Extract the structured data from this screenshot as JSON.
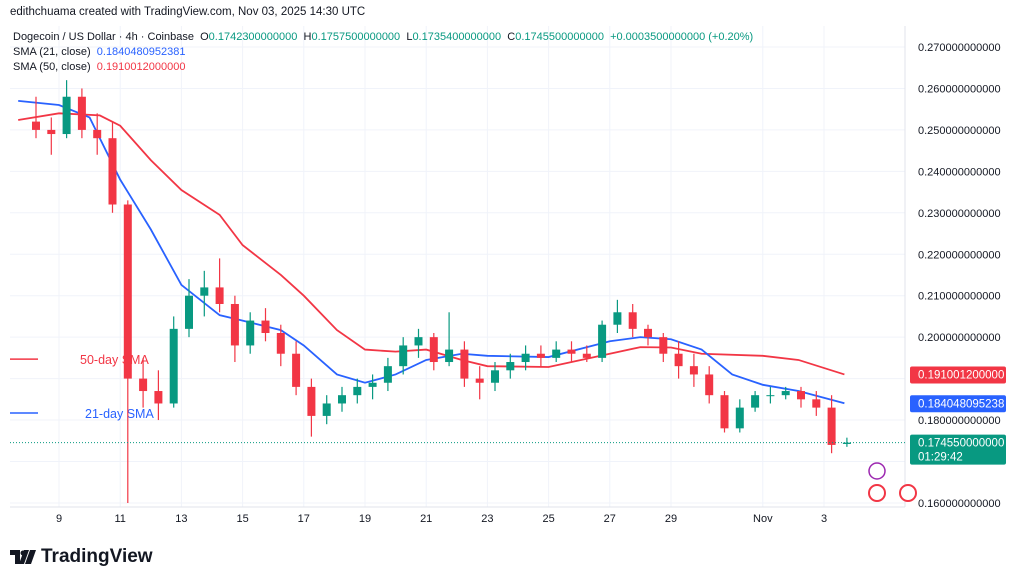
{
  "credit": "edithchuama created with TradingView.com, Nov 03, 2025 14:30 UTC",
  "legend": {
    "symbol": "Dogecoin / US Dollar · 4h · Coinbase",
    "o_label": "O",
    "o": "0.1742300000000",
    "h_label": "H",
    "h": "0.1757500000000",
    "l_label": "L",
    "l": "0.1735400000000",
    "c_label": "C",
    "c": "0.1745500000000",
    "change": "+0.0003500000000 (+0.20%)",
    "sma21_label": "SMA (21, close)",
    "sma21": "0.1840480952381",
    "sma50_label": "SMA (50, close)",
    "sma50": "0.1910012000000"
  },
  "logo_text": "TradingView",
  "colors": {
    "up": "#089981",
    "down": "#f23645",
    "sma21": "#2962ff",
    "sma50": "#f23645",
    "price_box": "#089981"
  },
  "chart_data": {
    "type": "candlestick",
    "ylim": [
      0.16,
      0.27
    ],
    "y_ticks": [
      "0.270000000000",
      "0.260000000000",
      "0.250000000000",
      "0.240000000000",
      "0.230000000000",
      "0.220000000000",
      "0.210000000000",
      "0.200000000000",
      "0.180000000000",
      "0.160000000000"
    ],
    "x_ticks": [
      {
        "d": "2025-10-09",
        "label": "9"
      },
      {
        "d": "2025-10-11",
        "label": "11"
      },
      {
        "d": "2025-10-13",
        "label": "13"
      },
      {
        "d": "2025-10-15",
        "label": "15"
      },
      {
        "d": "2025-10-17",
        "label": "17"
      },
      {
        "d": "2025-10-19",
        "label": "19"
      },
      {
        "d": "2025-10-21",
        "label": "21"
      },
      {
        "d": "2025-10-23",
        "label": "23"
      },
      {
        "d": "2025-10-25",
        "label": "25"
      },
      {
        "d": "2025-10-27",
        "label": "27"
      },
      {
        "d": "2025-10-29",
        "label": "29"
      },
      {
        "d": "2025-11-01",
        "label": "Nov"
      },
      {
        "d": "2025-11-03",
        "label": "3"
      }
    ],
    "candles": [
      [
        "2025-10-08T00",
        0.252,
        0.258,
        0.248,
        0.25
      ],
      [
        "2025-10-08T12",
        0.25,
        0.253,
        0.244,
        0.249
      ],
      [
        "2025-10-09T00",
        0.249,
        0.262,
        0.248,
        0.258
      ],
      [
        "2025-10-09T12",
        0.258,
        0.26,
        0.248,
        0.25
      ],
      [
        "2025-10-10T00",
        0.25,
        0.254,
        0.244,
        0.248
      ],
      [
        "2025-10-10T12",
        0.248,
        0.252,
        0.23,
        0.232
      ],
      [
        "2025-10-11T00",
        0.232,
        0.233,
        0.16,
        0.19
      ],
      [
        "2025-10-11T12",
        0.19,
        0.195,
        0.183,
        0.187
      ],
      [
        "2025-10-12T00",
        0.187,
        0.192,
        0.18,
        0.184
      ],
      [
        "2025-10-12T12",
        0.184,
        0.205,
        0.183,
        0.202
      ],
      [
        "2025-10-13T00",
        0.202,
        0.214,
        0.2,
        0.21
      ],
      [
        "2025-10-13T12",
        0.21,
        0.216,
        0.205,
        0.212
      ],
      [
        "2025-10-14T00",
        0.212,
        0.219,
        0.206,
        0.208
      ],
      [
        "2025-10-14T12",
        0.208,
        0.21,
        0.194,
        0.198
      ],
      [
        "2025-10-15T00",
        0.198,
        0.206,
        0.196,
        0.204
      ],
      [
        "2025-10-15T12",
        0.204,
        0.207,
        0.199,
        0.201
      ],
      [
        "2025-10-16T00",
        0.201,
        0.203,
        0.193,
        0.196
      ],
      [
        "2025-10-16T12",
        0.196,
        0.199,
        0.186,
        0.188
      ],
      [
        "2025-10-17T00",
        0.188,
        0.19,
        0.176,
        0.181
      ],
      [
        "2025-10-17T12",
        0.181,
        0.186,
        0.179,
        0.184
      ],
      [
        "2025-10-18T00",
        0.184,
        0.188,
        0.182,
        0.186
      ],
      [
        "2025-10-18T12",
        0.186,
        0.19,
        0.184,
        0.188
      ],
      [
        "2025-10-19T00",
        0.188,
        0.191,
        0.185,
        0.189
      ],
      [
        "2025-10-19T12",
        0.189,
        0.195,
        0.187,
        0.193
      ],
      [
        "2025-10-20T00",
        0.193,
        0.2,
        0.191,
        0.198
      ],
      [
        "2025-10-20T12",
        0.198,
        0.202,
        0.195,
        0.2
      ],
      [
        "2025-10-21T00",
        0.2,
        0.201,
        0.192,
        0.194
      ],
      [
        "2025-10-21T12",
        0.194,
        0.206,
        0.193,
        0.197
      ],
      [
        "2025-10-22T00",
        0.197,
        0.199,
        0.188,
        0.19
      ],
      [
        "2025-10-22T12",
        0.19,
        0.193,
        0.185,
        0.189
      ],
      [
        "2025-10-23T00",
        0.189,
        0.194,
        0.187,
        0.192
      ],
      [
        "2025-10-23T12",
        0.192,
        0.196,
        0.19,
        0.194
      ],
      [
        "2025-10-24T00",
        0.194,
        0.198,
        0.192,
        0.196
      ],
      [
        "2025-10-24T12",
        0.196,
        0.198,
        0.193,
        0.195
      ],
      [
        "2025-10-25T00",
        0.195,
        0.199,
        0.194,
        0.197
      ],
      [
        "2025-10-25T12",
        0.197,
        0.199,
        0.194,
        0.196
      ],
      [
        "2025-10-26T00",
        0.196,
        0.198,
        0.194,
        0.195
      ],
      [
        "2025-10-26T12",
        0.195,
        0.204,
        0.194,
        0.203
      ],
      [
        "2025-10-27T00",
        0.203,
        0.209,
        0.201,
        0.206
      ],
      [
        "2025-10-27T12",
        0.206,
        0.208,
        0.2,
        0.202
      ],
      [
        "2025-10-28T00",
        0.202,
        0.203,
        0.198,
        0.2
      ],
      [
        "2025-10-28T12",
        0.2,
        0.201,
        0.194,
        0.196
      ],
      [
        "2025-10-29T00",
        0.196,
        0.199,
        0.19,
        0.193
      ],
      [
        "2025-10-29T12",
        0.193,
        0.196,
        0.188,
        0.191
      ],
      [
        "2025-10-30T00",
        0.191,
        0.193,
        0.184,
        0.186
      ],
      [
        "2025-10-30T12",
        0.186,
        0.187,
        0.177,
        0.178
      ],
      [
        "2025-10-31T00",
        0.178,
        0.185,
        0.177,
        0.183
      ],
      [
        "2025-10-31T12",
        0.183,
        0.187,
        0.182,
        0.186
      ],
      [
        "2025-11-01T00",
        0.186,
        0.188,
        0.184,
        0.186
      ],
      [
        "2025-11-01T12",
        0.186,
        0.188,
        0.185,
        0.187
      ],
      [
        "2025-11-02T00",
        0.187,
        0.188,
        0.183,
        0.185
      ],
      [
        "2025-11-02T12",
        0.185,
        0.187,
        0.181,
        0.183
      ],
      [
        "2025-11-03T00",
        0.183,
        0.186,
        0.172,
        0.174
      ],
      [
        "2025-11-03T12",
        0.17423,
        0.17575,
        0.17354,
        0.17455
      ]
    ],
    "sma21": [
      [
        "2025-10-07T16",
        0.257
      ],
      [
        "2025-10-09T00",
        0.256
      ],
      [
        "2025-10-10T00",
        0.253
      ],
      [
        "2025-10-11T00",
        0.238
      ],
      [
        "2025-10-12T00",
        0.226
      ],
      [
        "2025-10-13T00",
        0.2126
      ],
      [
        "2025-10-14T06",
        0.2053
      ],
      [
        "2025-10-15T00",
        0.204
      ],
      [
        "2025-10-16T06",
        0.2017
      ],
      [
        "2025-10-17T00",
        0.198
      ],
      [
        "2025-10-18T02",
        0.191
      ],
      [
        "2025-10-19T00",
        0.189
      ],
      [
        "2025-10-20T00",
        0.191
      ],
      [
        "2025-10-21T00",
        0.1945
      ],
      [
        "2025-10-22T04",
        0.196
      ],
      [
        "2025-10-23T00",
        0.1955
      ],
      [
        "2025-10-25T00",
        0.1952
      ],
      [
        "2025-10-27T00",
        0.199
      ],
      [
        "2025-10-28T00",
        0.2
      ],
      [
        "2025-10-29T00",
        0.1995
      ],
      [
        "2025-10-30T00",
        0.197
      ],
      [
        "2025-10-31T00",
        0.191
      ],
      [
        "2025-11-01T00",
        0.1885
      ],
      [
        "2025-11-02T04",
        0.187
      ],
      [
        "2025-11-03T16",
        0.1840480952381
      ]
    ],
    "sma50": [
      [
        "2025-10-07T16",
        0.2524
      ],
      [
        "2025-10-09T00",
        0.254
      ],
      [
        "2025-10-10T08",
        0.2535
      ],
      [
        "2025-10-11T00",
        0.251
      ],
      [
        "2025-10-12T00",
        0.2427
      ],
      [
        "2025-10-13T00",
        0.2355
      ],
      [
        "2025-10-14T06",
        0.2295
      ],
      [
        "2025-10-15T00",
        0.2222
      ],
      [
        "2025-10-16T06",
        0.215
      ],
      [
        "2025-10-17T00",
        0.21
      ],
      [
        "2025-10-18T02",
        0.2017
      ],
      [
        "2025-10-19T00",
        0.197
      ],
      [
        "2025-10-20T00",
        0.1965
      ],
      [
        "2025-10-21T00",
        0.197
      ],
      [
        "2025-10-22T04",
        0.1945
      ],
      [
        "2025-10-23T00",
        0.193
      ],
      [
        "2025-10-25T00",
        0.1928
      ],
      [
        "2025-10-27T00",
        0.196
      ],
      [
        "2025-10-28T00",
        0.1976
      ],
      [
        "2025-10-29T00",
        0.1975
      ],
      [
        "2025-10-30T00",
        0.196
      ],
      [
        "2025-11-01T00",
        0.1955
      ],
      [
        "2025-11-02T04",
        0.1945
      ],
      [
        "2025-11-03T16",
        0.1910012
      ]
    ],
    "annotations": [
      {
        "text": "50-day SMA",
        "color": "#f23645",
        "price": 0.1935
      },
      {
        "text": "21-day SMA",
        "color": "#2962ff",
        "price": 0.1805
      }
    ],
    "last_price": {
      "value": 0.17455,
      "label": "0.174550000000",
      "countdown": "01:29:42"
    },
    "sma50_box": {
      "value": 0.1910012,
      "label": "0.191001200000"
    },
    "sma21_box": {
      "value": 0.1840481,
      "label": "0.184048095238"
    }
  }
}
